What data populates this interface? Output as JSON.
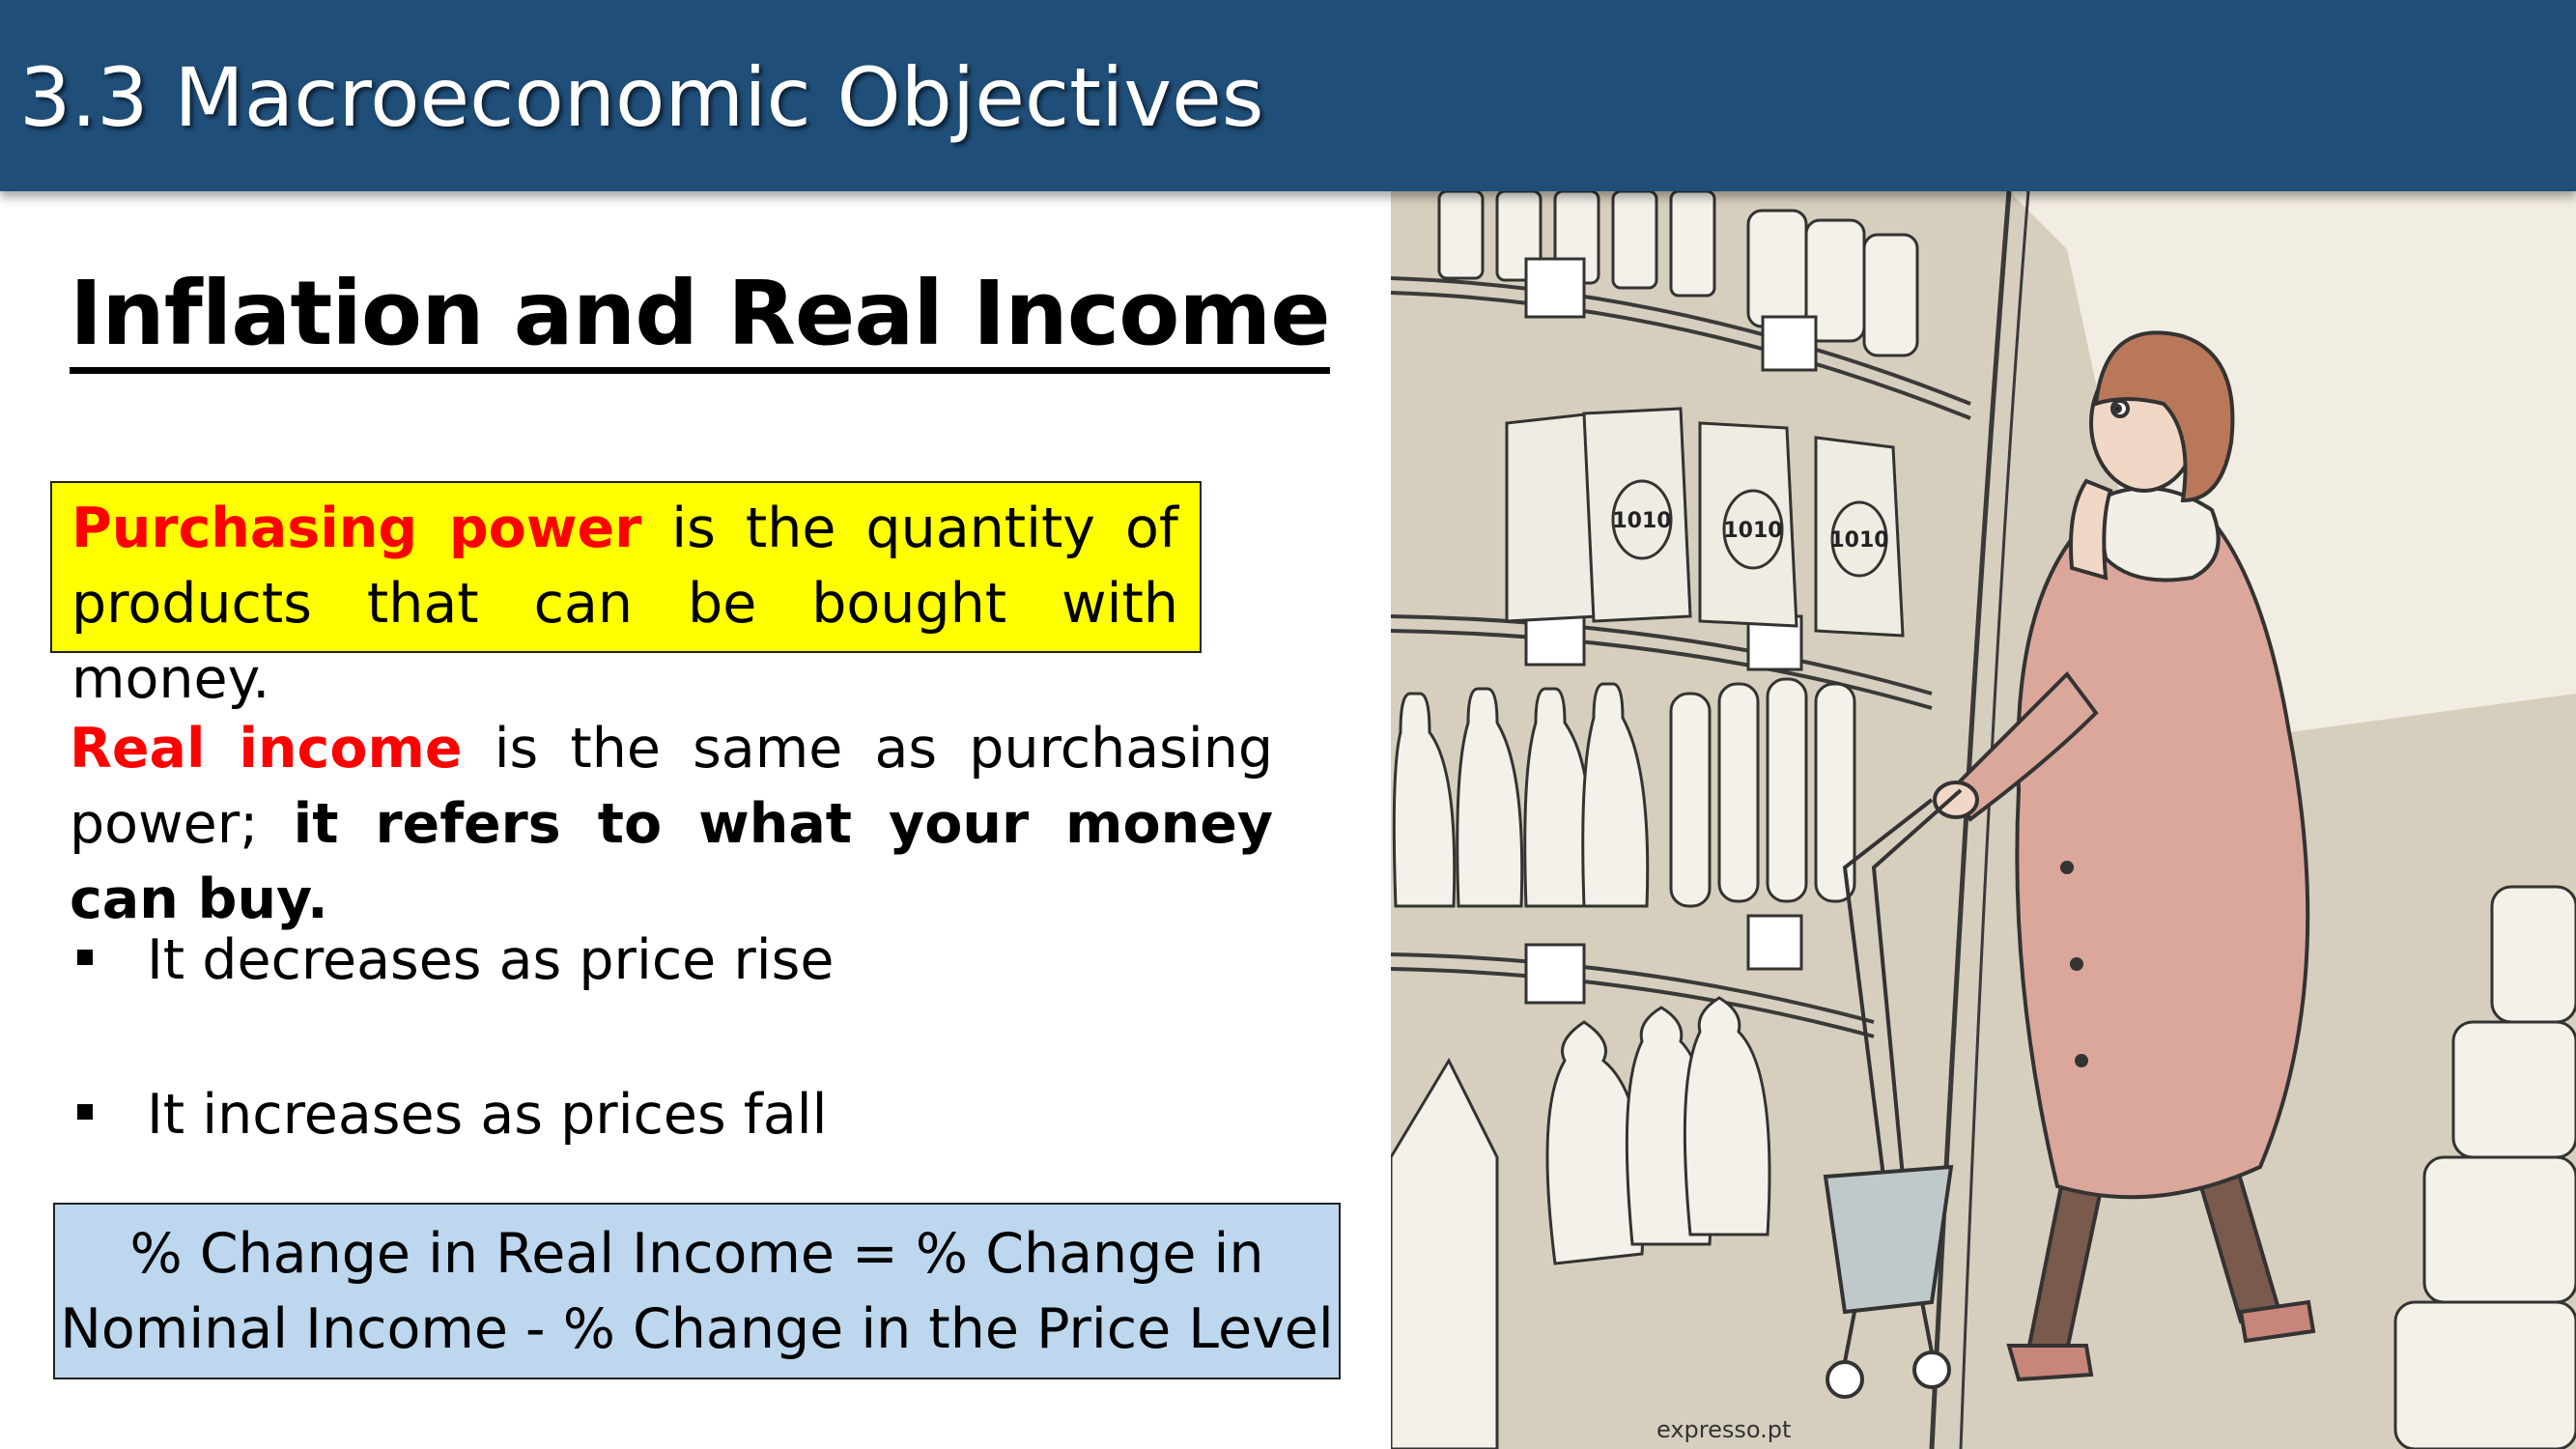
{
  "header": {
    "title": "3.3 Macroeconomic Objectives"
  },
  "section_title": "Inflation and Real Income",
  "purchasing_power": {
    "term": "Purchasing power",
    "definition": " is the quantity of products that can be bought with money."
  },
  "real_income": {
    "term": "Real income",
    "text": " is the same as purchasing power; ",
    "emphasis": "it refers to what your money can buy."
  },
  "bullets": [
    "It decreases as price rise",
    "It increases as prices fall"
  ],
  "formula": {
    "line1": "% Change in Real Income = % Change in",
    "line2": "Nominal Income - % Change in the Price Level"
  },
  "cartoon": {
    "bag_label": "1010",
    "signature": "expresso.pt"
  }
}
